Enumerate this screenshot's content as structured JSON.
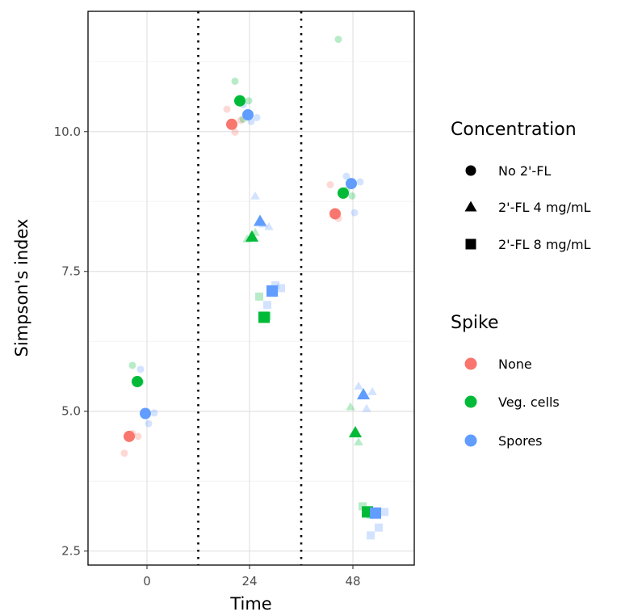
{
  "chart_data": {
    "type": "scatter",
    "xlabel": "Time",
    "ylabel": "Simpson's index",
    "x_categories": [
      "0",
      "24",
      "48"
    ],
    "y_ticks": [
      2.5,
      5.0,
      7.5,
      10.0
    ],
    "y_tick_labels": [
      "2.5",
      "5.0",
      "7.5",
      "10.0"
    ],
    "ylim": [
      2.25,
      12.15
    ],
    "grid": true,
    "separators": "dotted vertical lines between time groups",
    "legends": [
      {
        "title": "Concentration",
        "position": "right",
        "entries": [
          {
            "label": "No 2'-FL",
            "shape": "circle"
          },
          {
            "label": "2'-FL 4 mg/mL",
            "shape": "triangle"
          },
          {
            "label": "2'-FL 8 mg/mL",
            "shape": "square"
          }
        ]
      },
      {
        "title": "Spike",
        "position": "right",
        "entries": [
          {
            "label": "None",
            "color": "#F8766D"
          },
          {
            "label": "Veg. cells",
            "color": "#00BA38"
          },
          {
            "label": "Spores",
            "color": "#619CFF"
          }
        ]
      }
    ],
    "colors": {
      "None": "#F8766D",
      "Veg. cells": "#00BA38",
      "Spores": "#619CFF"
    },
    "series": [
      {
        "time": "0",
        "concentration": "No 2'-FL",
        "spike": "None",
        "mean": 4.55,
        "reps": [
          4.25,
          4.6,
          4.55
        ]
      },
      {
        "time": "0",
        "concentration": "No 2'-FL",
        "spike": "Veg. cells",
        "mean": 5.53,
        "reps": [
          5.82,
          5.52,
          4.98
        ]
      },
      {
        "time": "0",
        "concentration": "No 2'-FL",
        "spike": "Spores",
        "mean": 4.96,
        "reps": [
          5.75,
          4.78,
          4.97
        ]
      },
      {
        "time": "24",
        "concentration": "No 2'-FL",
        "spike": "None",
        "mean": 10.13,
        "reps": [
          10.4,
          9.99,
          10.2
        ]
      },
      {
        "time": "24",
        "concentration": "No 2'-FL",
        "spike": "Veg. cells",
        "mean": 10.55,
        "reps": [
          10.9,
          10.22,
          10.55
        ]
      },
      {
        "time": "24",
        "concentration": "No 2'-FL",
        "spike": "Spores",
        "mean": 10.3,
        "reps": [
          10.48,
          10.18,
          10.25
        ]
      },
      {
        "time": "24",
        "concentration": "2'-FL 4 mg/mL",
        "spike": "Veg. cells",
        "mean": 8.12,
        "reps": [
          8.08,
          8.2
        ]
      },
      {
        "time": "24",
        "concentration": "2'-FL 4 mg/mL",
        "spike": "Spores",
        "mean": 8.4,
        "reps": [
          8.85,
          8.35,
          8.3
        ]
      },
      {
        "time": "24",
        "concentration": "2'-FL 8 mg/mL",
        "spike": "Veg. cells",
        "mean": 6.68,
        "reps": [
          7.05,
          6.7
        ]
      },
      {
        "time": "24",
        "concentration": "2'-FL 8 mg/mL",
        "spike": "Spores",
        "mean": 7.15,
        "reps": [
          6.9,
          7.25,
          7.2
        ]
      },
      {
        "time": "48",
        "concentration": "No 2'-FL",
        "spike": "None",
        "mean": 8.53,
        "reps": [
          9.05,
          8.45
        ]
      },
      {
        "time": "48",
        "concentration": "No 2'-FL",
        "spike": "Veg. cells",
        "mean": 8.9,
        "reps": [
          11.65,
          8.95,
          8.85
        ]
      },
      {
        "time": "48",
        "concentration": "No 2'-FL",
        "spike": "Spores",
        "mean": 9.07,
        "reps": [
          9.2,
          8.55,
          9.1
        ]
      },
      {
        "time": "48",
        "concentration": "2'-FL 4 mg/mL",
        "spike": "Veg. cells",
        "mean": 4.62,
        "reps": [
          5.08,
          4.45
        ]
      },
      {
        "time": "48",
        "concentration": "2'-FL 4 mg/mL",
        "spike": "Spores",
        "mean": 5.3,
        "reps": [
          5.45,
          5.05,
          5.35
        ]
      },
      {
        "time": "48",
        "concentration": "2'-FL 8 mg/mL",
        "spike": "Veg. cells",
        "mean": 3.2,
        "reps": [
          3.3,
          3.15
        ]
      },
      {
        "time": "48",
        "concentration": "2'-FL 8 mg/mL",
        "spike": "Spores",
        "mean": 3.18,
        "reps": [
          2.78,
          2.92,
          3.2
        ]
      }
    ]
  }
}
